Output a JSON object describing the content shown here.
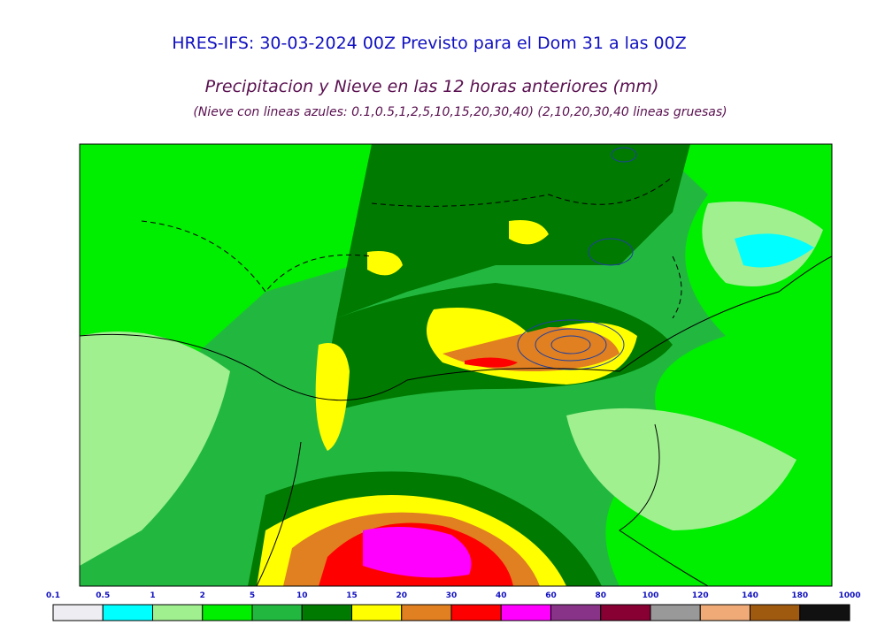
{
  "header": {
    "title": "HRES-IFS: 30-03-2024 00Z Previsto para el Dom 31 a las 00Z",
    "subtitle": "Precipitacion y Nieve en las 12 horas anteriores (mm)",
    "note": "(Nieve con lineas azules: 0.1,0.5,1,2,5,10,15,20,30,40)  (2,10,20,30,40 lineas gruesas)"
  },
  "legend": {
    "labels": [
      0.1,
      0.5,
      1,
      2,
      5,
      10,
      15,
      20,
      30,
      40,
      60,
      80,
      100,
      120,
      140,
      180,
      1000
    ],
    "colors": [
      "#eeeef2",
      "#00ffff",
      "#a0f090",
      "#00ee00",
      "#22b840",
      "#007a00",
      "#ffff00",
      "#e08020",
      "#ff0000",
      "#ff00ff",
      "#883388",
      "#880033",
      "#999999",
      "#f0aa77",
      "#a05a10",
      "#111111"
    ]
  }
}
